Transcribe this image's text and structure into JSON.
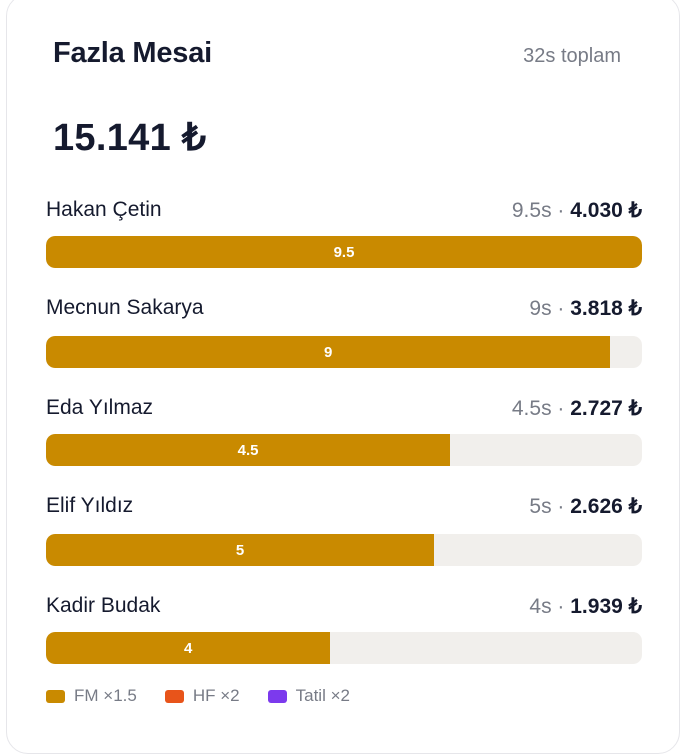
{
  "card": {
    "title": "Fazla Mesai",
    "total_hours": "32s toplam",
    "total_amount": "15.141 ₺"
  },
  "rows": [
    {
      "name": "Hakan Çetin",
      "hours": "9.5s",
      "separator": " · ",
      "amount": "4.030 ₺",
      "bar_label": "9.5",
      "fill_fraction": 1.0
    },
    {
      "name": "Mecnun Sakarya",
      "hours": "9s",
      "separator": " · ",
      "amount": "3.818 ₺",
      "bar_label": "9",
      "fill_fraction": 0.947
    },
    {
      "name": "Eda Yılmaz",
      "hours": "4.5s",
      "separator": " · ",
      "amount": "2.727 ₺",
      "bar_label": "4.5",
      "fill_fraction": 0.678
    },
    {
      "name": "Elif Yıldız",
      "hours": "5s",
      "separator": " · ",
      "amount": "2.626 ₺",
      "bar_label": "5",
      "fill_fraction": 0.651
    },
    {
      "name": "Kadir Budak",
      "hours": "4s",
      "separator": " · ",
      "amount": "1.939 ₺",
      "bar_label": "4",
      "fill_fraction": 0.477
    }
  ],
  "legend": [
    {
      "label": "FM ×1.5",
      "color": "#c98a00"
    },
    {
      "label": "HF ×2",
      "color": "#e8541a"
    },
    {
      "label": "Tatil ×2",
      "color": "#7c3aed"
    }
  ],
  "colors": {
    "bar_fill": "#c98a00",
    "track": "#f1efec",
    "text_primary": "#151a2e",
    "text_muted": "#777b86"
  }
}
